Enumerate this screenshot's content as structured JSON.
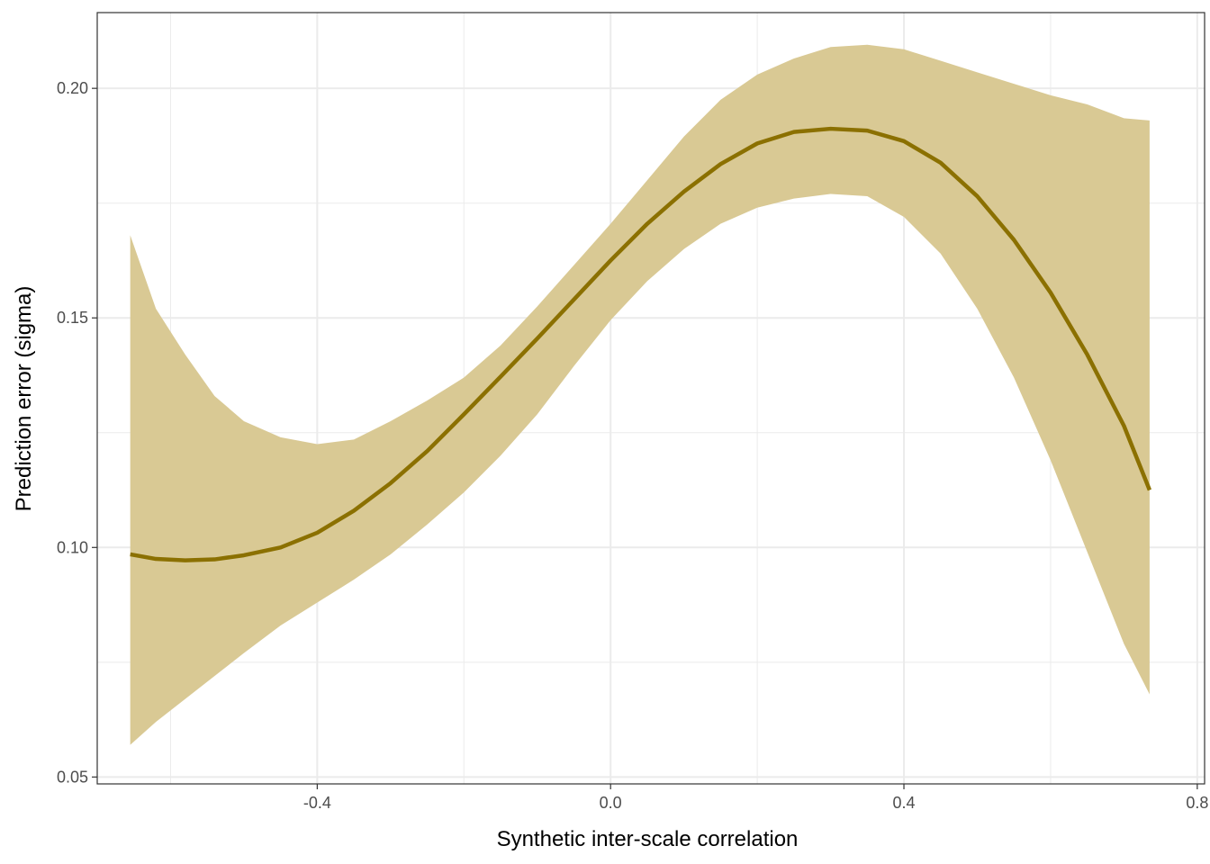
{
  "chart_data": {
    "type": "line",
    "title": "",
    "xlabel": "Synthetic inter-scale correlation",
    "ylabel": "Prediction error (sigma)",
    "xlim": [
      -0.7,
      0.81
    ],
    "ylim": [
      0.0485,
      0.2165
    ],
    "grid": true,
    "x_ticks": [
      -0.4,
      0.0,
      0.4,
      0.8
    ],
    "x_tick_labels": [
      "-0.4",
      "0.0",
      "0.4",
      "0.8"
    ],
    "x_minor_ticks": [
      -0.6,
      -0.2,
      0.2,
      0.6
    ],
    "y_ticks": [
      0.05,
      0.1,
      0.15,
      0.2
    ],
    "y_tick_labels": [
      "0.05",
      "0.10",
      "0.15",
      "0.20"
    ],
    "y_minor_ticks": [
      0.075,
      0.125,
      0.175
    ],
    "colors": {
      "line": "#8B7000",
      "ribbon": "#D9C994",
      "grid": "#EBEBEB",
      "panel_border": "#333333",
      "tick_text": "#4D4D4D"
    },
    "series": [
      {
        "x": [
          -0.655,
          -0.62,
          -0.58,
          -0.54,
          -0.5,
          -0.45,
          -0.4,
          -0.35,
          -0.3,
          -0.25,
          -0.2,
          -0.15,
          -0.1,
          -0.05,
          0.0,
          0.05,
          0.1,
          0.15,
          0.2,
          0.25,
          0.3,
          0.35,
          0.4,
          0.45,
          0.5,
          0.55,
          0.6,
          0.65,
          0.7,
          0.735
        ],
        "y": [
          0.0985,
          0.0975,
          0.0972,
          0.0974,
          0.0983,
          0.1,
          0.1032,
          0.108,
          0.114,
          0.121,
          0.129,
          0.1372,
          0.1455,
          0.154,
          0.1625,
          0.1705,
          0.1775,
          0.1835,
          0.188,
          0.1905,
          0.1912,
          0.1908,
          0.1885,
          0.1838,
          0.1765,
          0.167,
          0.1555,
          0.142,
          0.1265,
          0.1125
        ],
        "lower": [
          0.057,
          0.062,
          0.067,
          0.072,
          0.077,
          0.083,
          0.088,
          0.093,
          0.0985,
          0.105,
          0.112,
          0.12,
          0.129,
          0.1395,
          0.1495,
          0.158,
          0.165,
          0.1705,
          0.174,
          0.176,
          0.177,
          0.1765,
          0.172,
          0.164,
          0.152,
          0.137,
          0.119,
          0.099,
          0.079,
          0.068
        ],
        "upper": [
          0.168,
          0.152,
          0.142,
          0.133,
          0.1275,
          0.124,
          0.1225,
          0.1235,
          0.1275,
          0.132,
          0.137,
          0.144,
          0.1525,
          0.1615,
          0.1705,
          0.18,
          0.1895,
          0.1975,
          0.203,
          0.2065,
          0.209,
          0.2095,
          0.2085,
          0.206,
          0.2035,
          0.201,
          0.1985,
          0.1965,
          0.1935,
          0.193
        ]
      }
    ]
  }
}
